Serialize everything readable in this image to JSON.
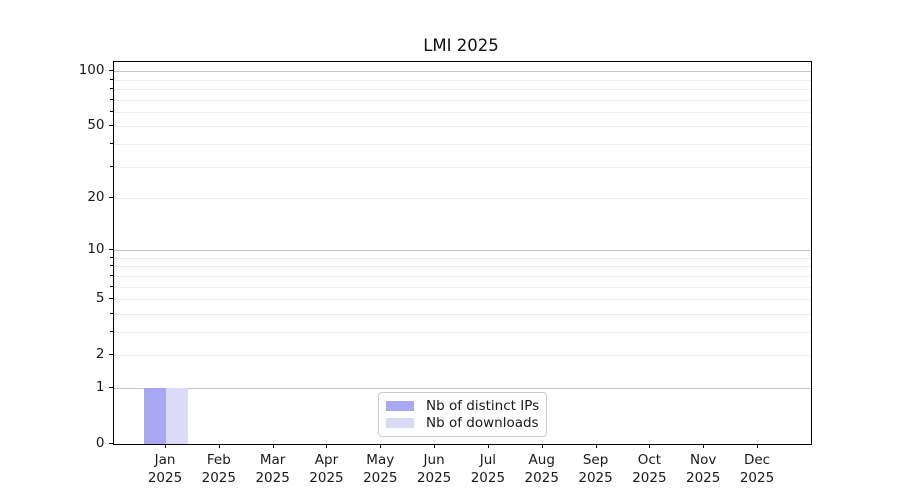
{
  "chart_data": {
    "type": "bar",
    "title": "LMI 2025",
    "x_months": [
      "Jan",
      "Feb",
      "Mar",
      "Apr",
      "May",
      "Jun",
      "Jul",
      "Aug",
      "Sep",
      "Oct",
      "Nov",
      "Dec"
    ],
    "x_year": "2025",
    "series": [
      {
        "name": "Nb of distinct IPs",
        "color": "#a7a7f4",
        "values": [
          1,
          0,
          0,
          0,
          0,
          0,
          0,
          0,
          0,
          0,
          0,
          0
        ]
      },
      {
        "name": "Nb of downloads",
        "color": "#dbdbf8",
        "values": [
          1,
          0,
          0,
          0,
          0,
          0,
          0,
          0,
          0,
          0,
          0,
          0
        ]
      }
    ],
    "yscale": "log1p",
    "ylim": [
      0,
      101
    ],
    "yticks_labeled": [
      0,
      1,
      2,
      5,
      10,
      20,
      50,
      100
    ],
    "ygrid_major": [
      1,
      10,
      100
    ],
    "ygrid_minor": [
      2,
      3,
      4,
      5,
      6,
      7,
      8,
      9,
      20,
      30,
      40,
      50,
      60,
      70,
      80,
      90
    ],
    "grid": "horizontal",
    "legend_position": "lower center"
  },
  "colors": {
    "background": "#ffffff",
    "spine": "#000000",
    "grid_major": "#c3c3c3",
    "grid_minor": "#ededed",
    "text": "#1a1a1a",
    "legend_border": "#cccccc"
  }
}
